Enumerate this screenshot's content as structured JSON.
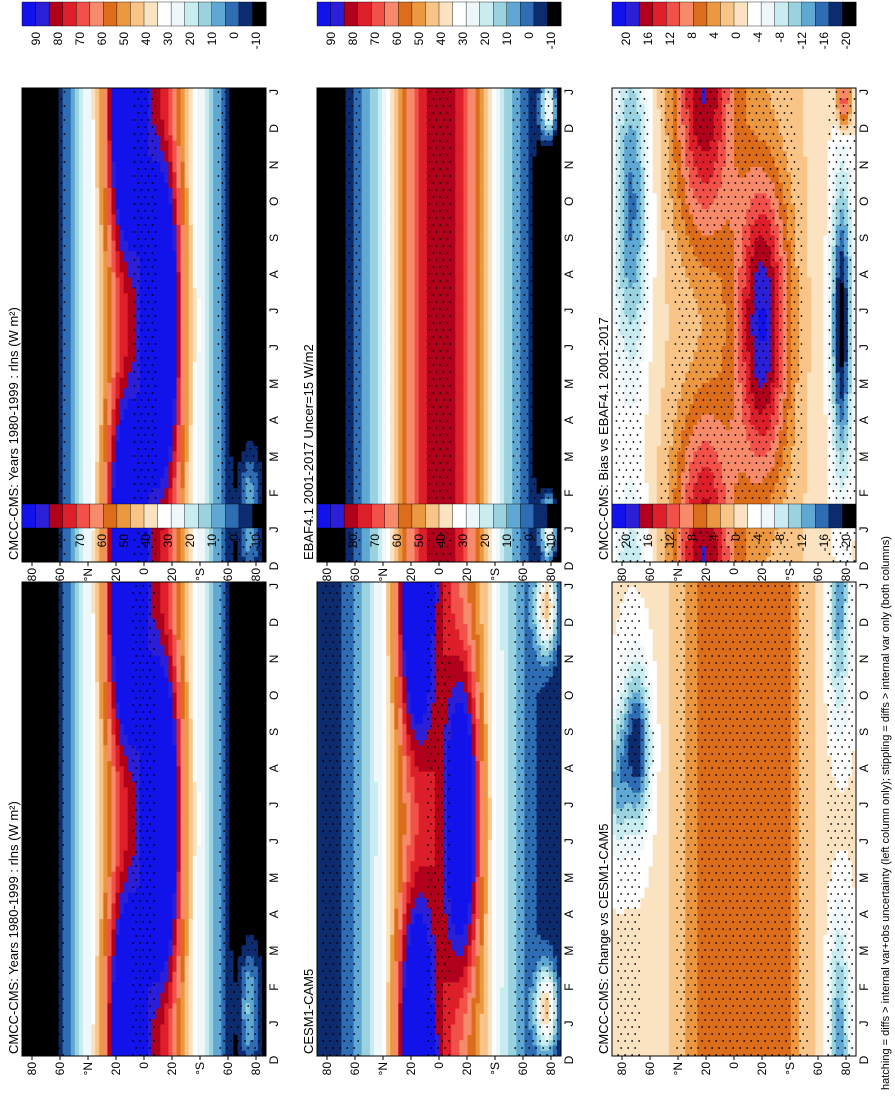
{
  "footnote": "hatching = diffs > internal var+obs uncertainty (left column only); stippling = diffs > internal var only (both columns)",
  "chart_data": [
    {
      "type": "heatmap",
      "panel": "left-top",
      "title": "CMCC-CMS: Years 1980-1999 : rlns (W m²)",
      "x_ticks": [
        "D",
        "J",
        "F",
        "M",
        "A",
        "M",
        "J",
        "J",
        "A",
        "S",
        "O",
        "N",
        "D",
        "J"
      ],
      "y_ticks": [
        "80",
        "60",
        "°N",
        "20",
        "0",
        "20",
        "°S",
        "60",
        "80"
      ],
      "colorbar_labels": [
        "90",
        "80",
        "70",
        "60",
        "50",
        "40",
        "30",
        "20",
        "10",
        "0",
        "-10"
      ],
      "pattern": "clim_model"
    },
    {
      "type": "heatmap",
      "panel": "left-middle",
      "title": "EBAF4.1 2001-2017 Uncer=15 W/m2",
      "x_ticks": [
        "D",
        "J",
        "F",
        "M",
        "A",
        "M",
        "J",
        "J",
        "A",
        "S",
        "O",
        "N",
        "D",
        "J"
      ],
      "y_ticks": [
        "80",
        "60",
        "°N",
        "20",
        "0",
        "20",
        "°S",
        "60",
        "80"
      ],
      "colorbar_labels": [
        "90",
        "80",
        "70",
        "60",
        "50",
        "40",
        "30",
        "20",
        "10",
        "0",
        "-10"
      ],
      "pattern": "clim_obs"
    },
    {
      "type": "heatmap",
      "panel": "left-bottom",
      "title": "CMCC-CMS: Bias vs EBAF4.1 2001-2017",
      "x_ticks": [
        "D",
        "J",
        "F",
        "M",
        "A",
        "M",
        "J",
        "J",
        "A",
        "S",
        "O",
        "N",
        "D",
        "J"
      ],
      "y_ticks": [
        "80",
        "60",
        "°N",
        "20",
        "0",
        "20",
        "°S",
        "60",
        "80"
      ],
      "colorbar_labels": [
        "20",
        "16",
        "12",
        "8",
        "4",
        "0",
        "-4",
        "-8",
        "-12",
        "-16",
        "-20"
      ],
      "pattern": "diff_bias"
    },
    {
      "type": "heatmap",
      "panel": "right-top",
      "title": "CMCC-CMS: Years 1980-1999 : rlns (W m²)",
      "x_ticks": [
        "D",
        "J",
        "F",
        "M",
        "A",
        "M",
        "J",
        "J",
        "A",
        "S",
        "O",
        "N",
        "D",
        "J"
      ],
      "y_ticks": [
        "80",
        "60",
        "°N",
        "20",
        "0",
        "20",
        "°S",
        "60",
        "80"
      ],
      "colorbar_labels": [
        "90",
        "80",
        "70",
        "60",
        "50",
        "40",
        "30",
        "20",
        "10",
        "0",
        "-10"
      ],
      "pattern": "clim_model"
    },
    {
      "type": "heatmap",
      "panel": "right-middle",
      "title": "CESM1-CAM5",
      "x_ticks": [
        "D",
        "J",
        "F",
        "M",
        "A",
        "M",
        "J",
        "J",
        "A",
        "S",
        "O",
        "N",
        "D",
        "J"
      ],
      "y_ticks": [
        "80",
        "60",
        "°N",
        "20",
        "0",
        "20",
        "°S",
        "60",
        "80"
      ],
      "colorbar_labels": [
        "90",
        "80",
        "70",
        "60",
        "50",
        "40",
        "30",
        "20",
        "10",
        "0",
        "-10"
      ],
      "pattern": "clim_model2"
    },
    {
      "type": "heatmap",
      "panel": "right-bottom",
      "title": "CMCC-CMS: Change vs CESM1-CAM5",
      "x_ticks": [
        "D",
        "J",
        "F",
        "M",
        "A",
        "M",
        "J",
        "J",
        "A",
        "S",
        "O",
        "N",
        "D",
        "J"
      ],
      "y_ticks": [
        "80",
        "60",
        "°N",
        "20",
        "0",
        "20",
        "°S",
        "60",
        "80"
      ],
      "colorbar_labels": [
        "20",
        "16",
        "12",
        "8",
        "4",
        "0",
        "-4",
        "-8",
        "-12",
        "-16",
        "-20"
      ],
      "pattern": "diff_change"
    }
  ]
}
